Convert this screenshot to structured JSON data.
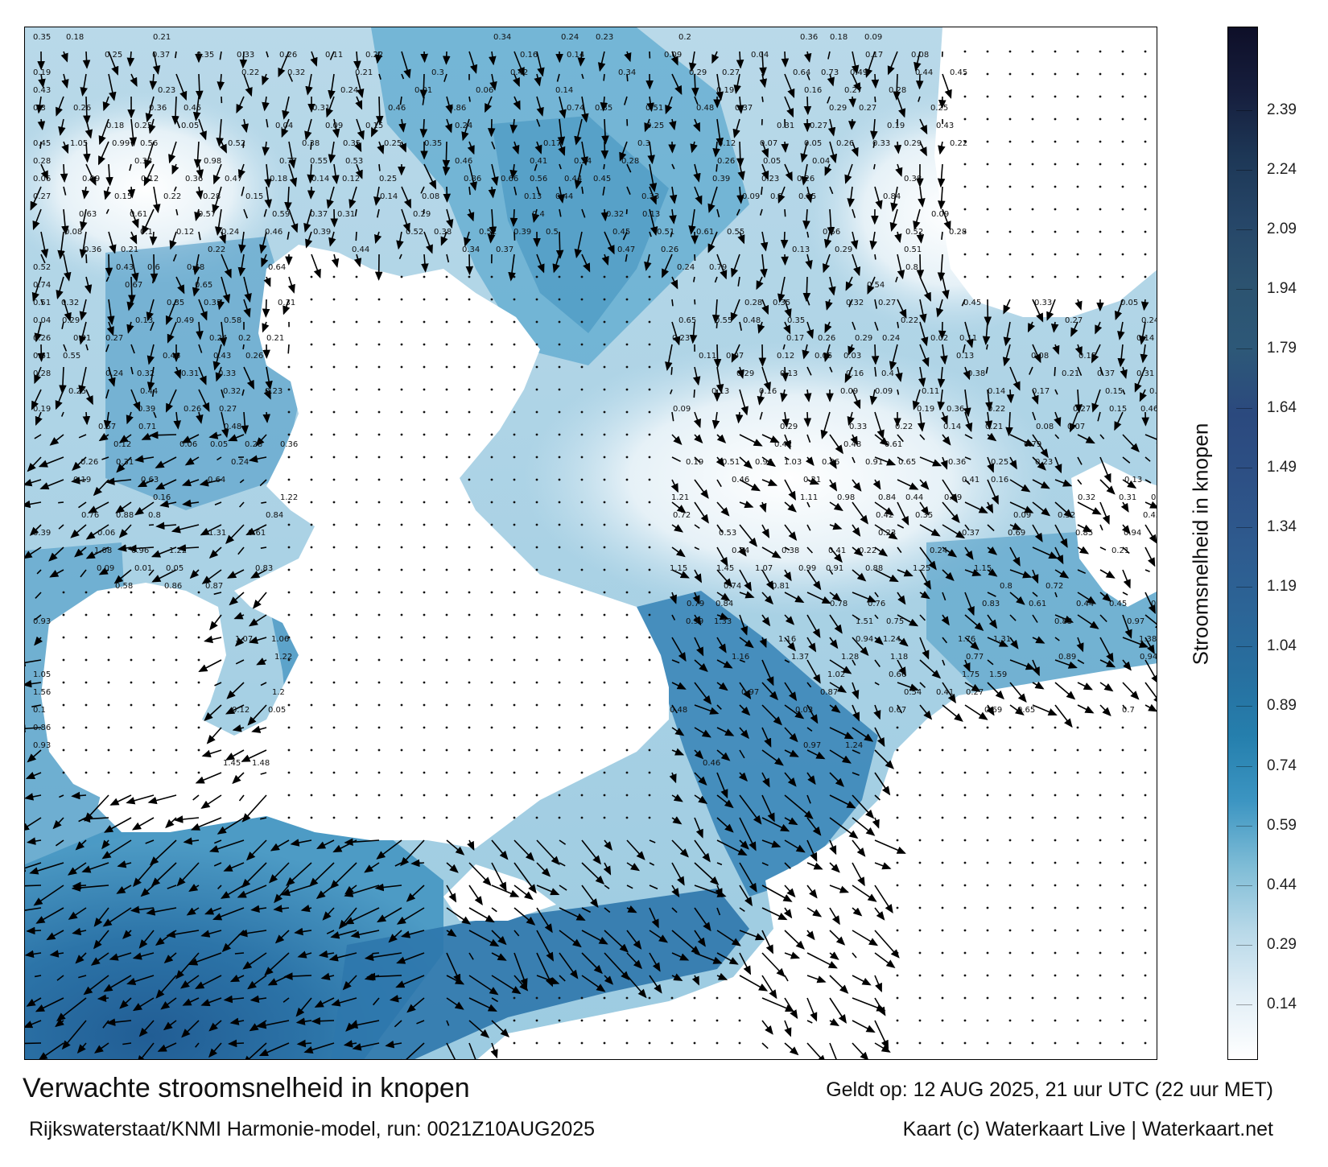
{
  "title": "Verwachte stroomsnelheid in knopen",
  "valid_time": "Geldt op: 12 AUG 2025, 21 uur UTC (22 uur MET)",
  "model_run": "Rijkswaterstaat/KNMI Harmonie-model, run: 0021Z10AUG2025",
  "credits": "Kaart (c) Waterkaart Live | Waterkaart.net",
  "colorbar": {
    "title": "Stroomsnelheid in knopen",
    "ticks": [
      "0.14",
      "0.29",
      "0.44",
      "0.59",
      "0.74",
      "0.89",
      "1.04",
      "1.19",
      "1.34",
      "1.49",
      "1.64",
      "1.79",
      "1.94",
      "2.09",
      "2.24",
      "2.39"
    ],
    "range": [
      0,
      2.6
    ],
    "colors": [
      "#ffffff",
      "#e1eef6",
      "#b7d8e8",
      "#7ebcd6",
      "#3c95c2",
      "#257fad",
      "#276f9f",
      "#2c6496",
      "#2e5a8e",
      "#2d5085",
      "#2b497e",
      "#2d5878",
      "#2c5370",
      "#264668",
      "#1d3756",
      "#161e3d",
      "#0e0f28"
    ]
  },
  "map_labels": [
    "0.35",
    "0.18",
    "0.21",
    "0.34",
    "0.24",
    "0.23",
    "0.2",
    "0.36",
    "0.18",
    "0.09",
    "0.25",
    "0.37",
    "0.35",
    "0.33",
    "0.26",
    "0.11",
    "0.22",
    "0.16",
    "0.14",
    "0.09",
    "0.04",
    "0.17",
    "0.08",
    "0.19",
    "0.22",
    "0.32",
    "0.21",
    "0.3",
    "0.42",
    "0.34",
    "0.29",
    "0.27",
    "0.64",
    "0.73",
    "0.49",
    "0.44",
    "0.45",
    "0.43",
    "0.23",
    "0.24",
    "0.01",
    "0.06",
    "0.14",
    "0.19",
    "0.16",
    "0.27",
    "0.28",
    "0.3",
    "0.26",
    "0.36",
    "0.45",
    "0.31",
    "0.46",
    "0.86",
    "0.74",
    "0.35",
    "0.51",
    "0.48",
    "0.37",
    "0.29",
    "0.27",
    "0.25",
    "0.18",
    "0.25",
    "0.05",
    "0.04",
    "0.09",
    "0.15",
    "0.24",
    "0.25",
    "0.31",
    "0.27",
    "0.19",
    "0.43",
    "0.45",
    "1.05",
    "0.99",
    "0.56",
    "0.52",
    "0.38",
    "0.35",
    "0.25",
    "0.35",
    "0.17",
    "0.3",
    "0.12",
    "0.07",
    "0.05",
    "0.26",
    "0.33",
    "0.29",
    "0.22",
    "0.28",
    "0.33",
    "0.98",
    "0.77",
    "0.55",
    "0.53",
    "0.46",
    "0.41",
    "0.24",
    "0.28",
    "0.26",
    "0.05",
    "0.04",
    "0.06",
    "0.09",
    "0.12",
    "0.36",
    "0.47",
    "0.18",
    "0.14",
    "0.12",
    "0.25",
    "0.86",
    "0.66",
    "0.56",
    "0.44",
    "0.45",
    "0.39",
    "0.23",
    "0.26",
    "0.38",
    "0.27",
    "0.15",
    "0.22",
    "0.28",
    "0.15",
    "0.14",
    "0.08",
    "0.13",
    "0.44",
    "0.33",
    "0.09",
    "0.2",
    "0.85",
    "0.84",
    "0.63",
    "0.61",
    "0.57",
    "0.59",
    "0.37",
    "0.31",
    "0.29",
    "0.4",
    "0.32",
    "0.13",
    "0.09",
    "0.08",
    "0.1",
    "0.12",
    "0.24",
    "0.46",
    "0.39",
    "0.52",
    "0.38",
    "0.52",
    "0.39",
    "0.5",
    "0.45",
    "0.51",
    "0.61",
    "0.55",
    "0.56",
    "0.52",
    "0.28",
    "0.36",
    "0.21",
    "0.22",
    "0.44",
    "0.34",
    "0.37",
    "0.47",
    "0.26",
    "0.13",
    "0.29",
    "0.51",
    "0.52",
    "0.43",
    "0.6",
    "0.48",
    "0.64",
    "0.24",
    "0.79",
    "0.8",
    "0.74",
    "0.67",
    "0.65",
    "0.54",
    "0.51",
    "0.32",
    "0.35",
    "0.33",
    "0.31",
    "0.28",
    "0.35",
    "0.32",
    "0.27",
    "0.45",
    "0.33",
    "0.05",
    "0.04",
    "0.29",
    "0.13",
    "0.49",
    "0.58",
    "0.65",
    "0.55",
    "0.48",
    "0.35",
    "0.22",
    "0.27",
    "0.24",
    "0.26",
    "0.31",
    "0.27",
    "0.24",
    "0.2",
    "0.21",
    "0.23",
    "0.17",
    "0.26",
    "0.29",
    "0.24",
    "0.02",
    "0.11",
    "0.14",
    "0.61",
    "0.55",
    "0.46",
    "0.43",
    "0.26",
    "0.11",
    "0.07",
    "0.12",
    "0.05",
    "0.03",
    "0.13",
    "0.08",
    "0.15",
    "0.28",
    "0.24",
    "0.32",
    "0.31",
    "0.33",
    "0.29",
    "0.13",
    "0.16",
    "0.4",
    "0.38",
    "0.21",
    "0.37",
    "0.31",
    "0.25",
    "0.44",
    "0.32",
    "0.23",
    "0.13",
    "0.16",
    "0.09",
    "0.09",
    "0.11",
    "0.14",
    "0.17",
    "0.15",
    "0.18",
    "0.19",
    "0.39",
    "0.26",
    "0.27",
    "0.09",
    "0.19",
    "0.36",
    "0.22",
    "0.27",
    "0.15",
    "0.46",
    "0.57",
    "0.71",
    "0.48",
    "0.29",
    "0.33",
    "0.22",
    "0.14",
    "0.21",
    "0.08",
    "0.07",
    "0.12",
    "0.06",
    "0.05",
    "0.28",
    "0.36",
    "0.42",
    "0.48",
    "0.61",
    "0.79",
    "0.26",
    "0.31",
    "0.24",
    "0.19",
    "0.51",
    "0.96",
    "1.03",
    "0.86",
    "0.91",
    "0.65",
    "0.36",
    "0.25",
    "0.23",
    "0.19",
    "0.63",
    "0.64",
    "0.46",
    "0.21",
    "0.41",
    "0.16",
    "0.13",
    "0.16",
    "1.22",
    "1.21",
    "1.11",
    "0.98",
    "0.84",
    "0.44",
    "0.29",
    "0.32",
    "0.31",
    "0.62",
    "0.76",
    "0.88",
    "0.8",
    "0.84",
    "0.72",
    "0.42",
    "0.35",
    "0.09",
    "0.52",
    "0.43",
    "0.39",
    "0.06",
    "1.31",
    "0.61",
    "0.53",
    "0.23",
    "0.37",
    "0.69",
    "0.85",
    "0.94",
    "1.08",
    "0.96",
    "1.22",
    "0.54",
    "0.38",
    "0.41",
    "0.22",
    "0.24",
    "0.21",
    "0.09",
    "0.01",
    "0.05",
    "0.83",
    "1.15",
    "1.45",
    "1.07",
    "0.99",
    "0.91",
    "0.88",
    "1.25",
    "1.15",
    "0.58",
    "0.86",
    "0.87",
    "0.74",
    "0.81",
    "0.8",
    "0.72",
    "0.79",
    "0.84",
    "0.78",
    "0.76",
    "0.83",
    "0.61",
    "0.44",
    "0.45",
    "0.77",
    "0.93",
    "0.99",
    "1.33",
    "1.51",
    "0.75",
    "0.83",
    "0.97",
    "1.07",
    "1.06",
    "1.16",
    "0.94",
    "1.24",
    "1.76",
    "1.31",
    "1.38",
    "1.22",
    "1.16",
    "1.37",
    "1.28",
    "1.18",
    "0.77",
    "0.89",
    "0.94",
    "1.05",
    "1.02",
    "0.66",
    "1.75",
    "1.59",
    "1.56",
    "1.2",
    "0.97",
    "0.87",
    "0.54",
    "0.41",
    "0.27",
    "0.1",
    "0.12",
    "0.05",
    "0.48",
    "0.03",
    "0.67",
    "0.69",
    "0.65",
    "0.7",
    "0.86",
    "0.93",
    "0.97",
    "1.24",
    "1.45",
    "1.48",
    "0.46"
  ],
  "legend_note": ""
}
